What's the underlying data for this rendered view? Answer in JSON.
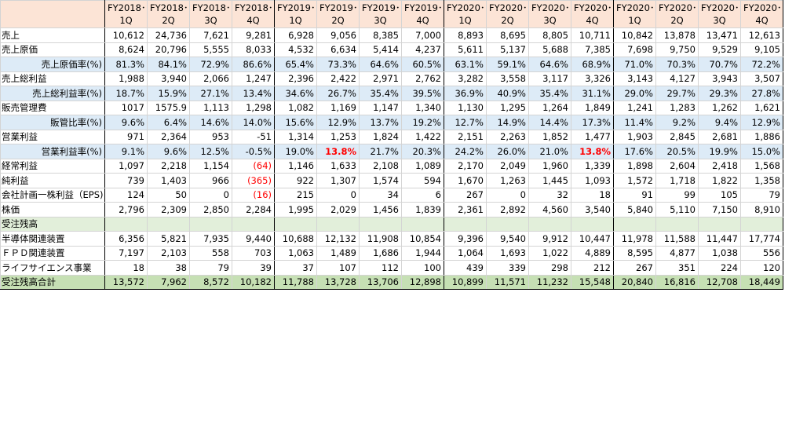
{
  "header": {
    "columns": [
      {
        "year": "FY2018･",
        "quarter": "1Q"
      },
      {
        "year": "FY2018･",
        "quarter": "2Q"
      },
      {
        "year": "FY2018･",
        "quarter": "3Q"
      },
      {
        "year": "FY2018･",
        "quarter": "4Q"
      },
      {
        "year": "FY2019･",
        "quarter": "1Q"
      },
      {
        "year": "FY2019･",
        "quarter": "2Q"
      },
      {
        "year": "FY2019･",
        "quarter": "3Q"
      },
      {
        "year": "FY2019･",
        "quarter": "4Q"
      },
      {
        "year": "FY2020･",
        "quarter": "1Q"
      },
      {
        "year": "FY2020･",
        "quarter": "2Q"
      },
      {
        "year": "FY2020･",
        "quarter": "3Q"
      },
      {
        "year": "FY2020･",
        "quarter": "4Q"
      },
      {
        "year": "FY2020･",
        "quarter": "1Q"
      },
      {
        "year": "FY2020･",
        "quarter": "2Q"
      },
      {
        "year": "FY2020･",
        "quarter": "3Q"
      },
      {
        "year": "FY2020･",
        "quarter": "4Q"
      }
    ]
  },
  "table": {
    "rows": [
      {
        "label": "売上",
        "values": [
          "10,612",
          "24,736",
          "7,621",
          "9,281",
          "6,928",
          "9,056",
          "8,385",
          "7,000",
          "8,893",
          "8,695",
          "8,805",
          "10,711",
          "10,842",
          "13,878",
          "13,471",
          "12,613"
        ]
      },
      {
        "label": "売上原価",
        "values": [
          "8,624",
          "20,796",
          "5,555",
          "8,033",
          "4,532",
          "6,634",
          "5,414",
          "4,237",
          "5,611",
          "5,137",
          "5,688",
          "7,385",
          "7,698",
          "9,750",
          "9,529",
          "9,105"
        ]
      },
      {
        "label": "売上原価率(%)",
        "values": [
          "81.3%",
          "84.1%",
          "72.9%",
          "86.6%",
          "65.4%",
          "73.3%",
          "64.6%",
          "60.5%",
          "63.1%",
          "59.1%",
          "64.6%",
          "68.9%",
          "71.0%",
          "70.3%",
          "70.7%",
          "72.2%"
        ]
      },
      {
        "label": "売上総利益",
        "values": [
          "1,988",
          "3,940",
          "2,066",
          "1,247",
          "2,396",
          "2,422",
          "2,971",
          "2,762",
          "3,282",
          "3,558",
          "3,117",
          "3,326",
          "3,143",
          "4,127",
          "3,943",
          "3,507"
        ]
      },
      {
        "label": "売上総利益率(%)",
        "values": [
          "18.7%",
          "15.9%",
          "27.1%",
          "13.4%",
          "34.6%",
          "26.7%",
          "35.4%",
          "39.5%",
          "36.9%",
          "40.9%",
          "35.4%",
          "31.1%",
          "29.0%",
          "29.7%",
          "29.3%",
          "27.8%"
        ]
      },
      {
        "label": "販売管理費",
        "values": [
          "1017",
          "1575.9",
          "1,113",
          "1,298",
          "1,082",
          "1,169",
          "1,147",
          "1,340",
          "1,130",
          "1,295",
          "1,264",
          "1,849",
          "1,241",
          "1,283",
          "1,262",
          "1,621"
        ]
      },
      {
        "label": "販管比率(%)",
        "values": [
          "9.6%",
          "6.4%",
          "14.6%",
          "14.0%",
          "15.6%",
          "12.9%",
          "13.7%",
          "19.2%",
          "12.7%",
          "14.9%",
          "14.4%",
          "17.3%",
          "11.4%",
          "9.2%",
          "9.4%",
          "12.9%"
        ]
      },
      {
        "label": "営業利益",
        "values": [
          "971",
          "2,364",
          "953",
          "-51",
          "1,314",
          "1,253",
          "1,824",
          "1,422",
          "2,151",
          "2,263",
          "1,852",
          "1,477",
          "1,903",
          "2,845",
          "2,681",
          "1,886"
        ]
      },
      {
        "label": "営業利益率(%)",
        "values": [
          "9.1%",
          "9.6%",
          "12.5%",
          "-0.5%",
          "19.0%",
          "13.8%",
          "21.7%",
          "20.3%",
          "24.2%",
          "26.0%",
          "21.0%",
          "13.8%",
          "17.6%",
          "20.5%",
          "19.9%",
          "15.0%"
        ]
      },
      {
        "label": "経常利益",
        "values": [
          "1,097",
          "2,218",
          "1,154",
          "(64)",
          "1,146",
          "1,633",
          "2,108",
          "1,089",
          "2,170",
          "2,049",
          "1,960",
          "1,339",
          "1,898",
          "2,604",
          "2,418",
          "1,568"
        ]
      },
      {
        "label": "純利益",
        "values": [
          "739",
          "1,403",
          "966",
          "(365)",
          "922",
          "1,307",
          "1,574",
          "594",
          "1,670",
          "1,263",
          "1,445",
          "1,093",
          "1,572",
          "1,718",
          "1,822",
          "1,358"
        ]
      },
      {
        "label": "会社計画一株利益（EPS)",
        "values": [
          "124",
          "50",
          "0",
          "(16)",
          "215",
          "0",
          "34",
          "6",
          "267",
          "0",
          "32",
          "18",
          "91",
          "99",
          "105",
          "79"
        ]
      },
      {
        "label": "株価",
        "values": [
          "2,796",
          "2,309",
          "2,850",
          "2,284",
          "1,995",
          "2,029",
          "1,456",
          "1,839",
          "2,361",
          "2,892",
          "4,560",
          "3,540",
          "5,840",
          "5,110",
          "7,150",
          "8,910"
        ]
      },
      {
        "label": "受注残高"
      },
      {
        "label": "半導体関連装置",
        "values": [
          "6,356",
          "5,821",
          "7,935",
          "9,440",
          "10,688",
          "12,132",
          "11,908",
          "10,854",
          "9,396",
          "9,540",
          "9,912",
          "10,447",
          "11,978",
          "11,588",
          "11,447",
          "17,774"
        ]
      },
      {
        "label": "ＦＰＤ関連装置",
        "values": [
          "7,197",
          "2,103",
          "558",
          "703",
          "1,063",
          "1,489",
          "1,686",
          "1,944",
          "1,064",
          "1,693",
          "1,022",
          "4,889",
          "8,595",
          "4,877",
          "1,038",
          "556"
        ]
      },
      {
        "label": "ライフサイエンス事業",
        "values": [
          "18",
          "38",
          "79",
          "39",
          "37",
          "107",
          "112",
          "100",
          "439",
          "339",
          "298",
          "212",
          "267",
          "351",
          "224",
          "120"
        ]
      },
      {
        "label": "受注残高合計",
        "values": [
          "13,572",
          "7,962",
          "8,572",
          "10,182",
          "11,788",
          "13,728",
          "13,706",
          "12,898",
          "10,899",
          "11,571",
          "11,232",
          "15,548",
          "20,840",
          "16,816",
          "12,708",
          "18,449"
        ]
      }
    ]
  }
}
